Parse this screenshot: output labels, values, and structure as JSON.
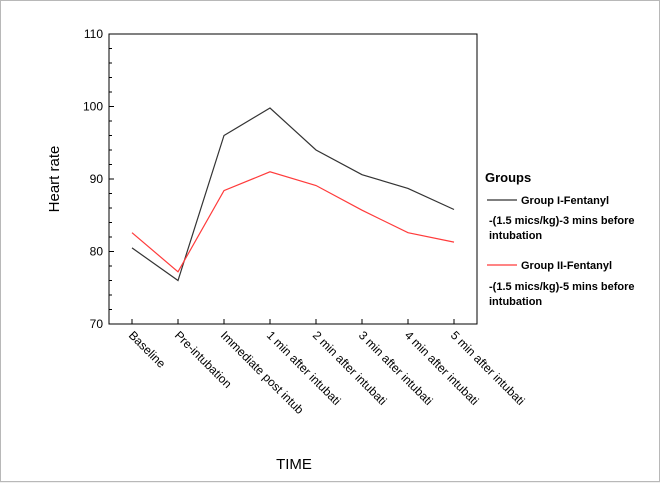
{
  "chart_data": {
    "type": "line",
    "title": "",
    "xlabel": "TIME",
    "ylabel": "Heart rate",
    "ylim": [
      70,
      110
    ],
    "yticks": [
      "70",
      "80",
      "90",
      "100",
      "110"
    ],
    "grid": false,
    "legend_position": "right",
    "categories": [
      "Baseline",
      "Pre-intubation",
      "Immediate post intub",
      "1 min after intubati",
      "2 min after intubati",
      "3 min after intubati",
      "4 min after intubati",
      "5 min after intubati"
    ],
    "legend_title": "Groups",
    "series": [
      {
        "name": "Group I-Fentanyl",
        "name_line2": "-(1.5 mics/kg)-3 mins before",
        "name_line3": "intubation",
        "color": "#333333",
        "values": [
          80.5,
          76.0,
          96.0,
          99.8,
          94.0,
          90.6,
          88.7,
          85.8
        ]
      },
      {
        "name": "Group II-Fentanyl",
        "name_line2": "-(1.5 mics/kg)-5 mins before",
        "name_line3": "intubation",
        "color": "#ff3b3b",
        "values": [
          82.6,
          77.2,
          88.4,
          91.0,
          89.1,
          85.7,
          82.6,
          81.3
        ]
      }
    ]
  }
}
